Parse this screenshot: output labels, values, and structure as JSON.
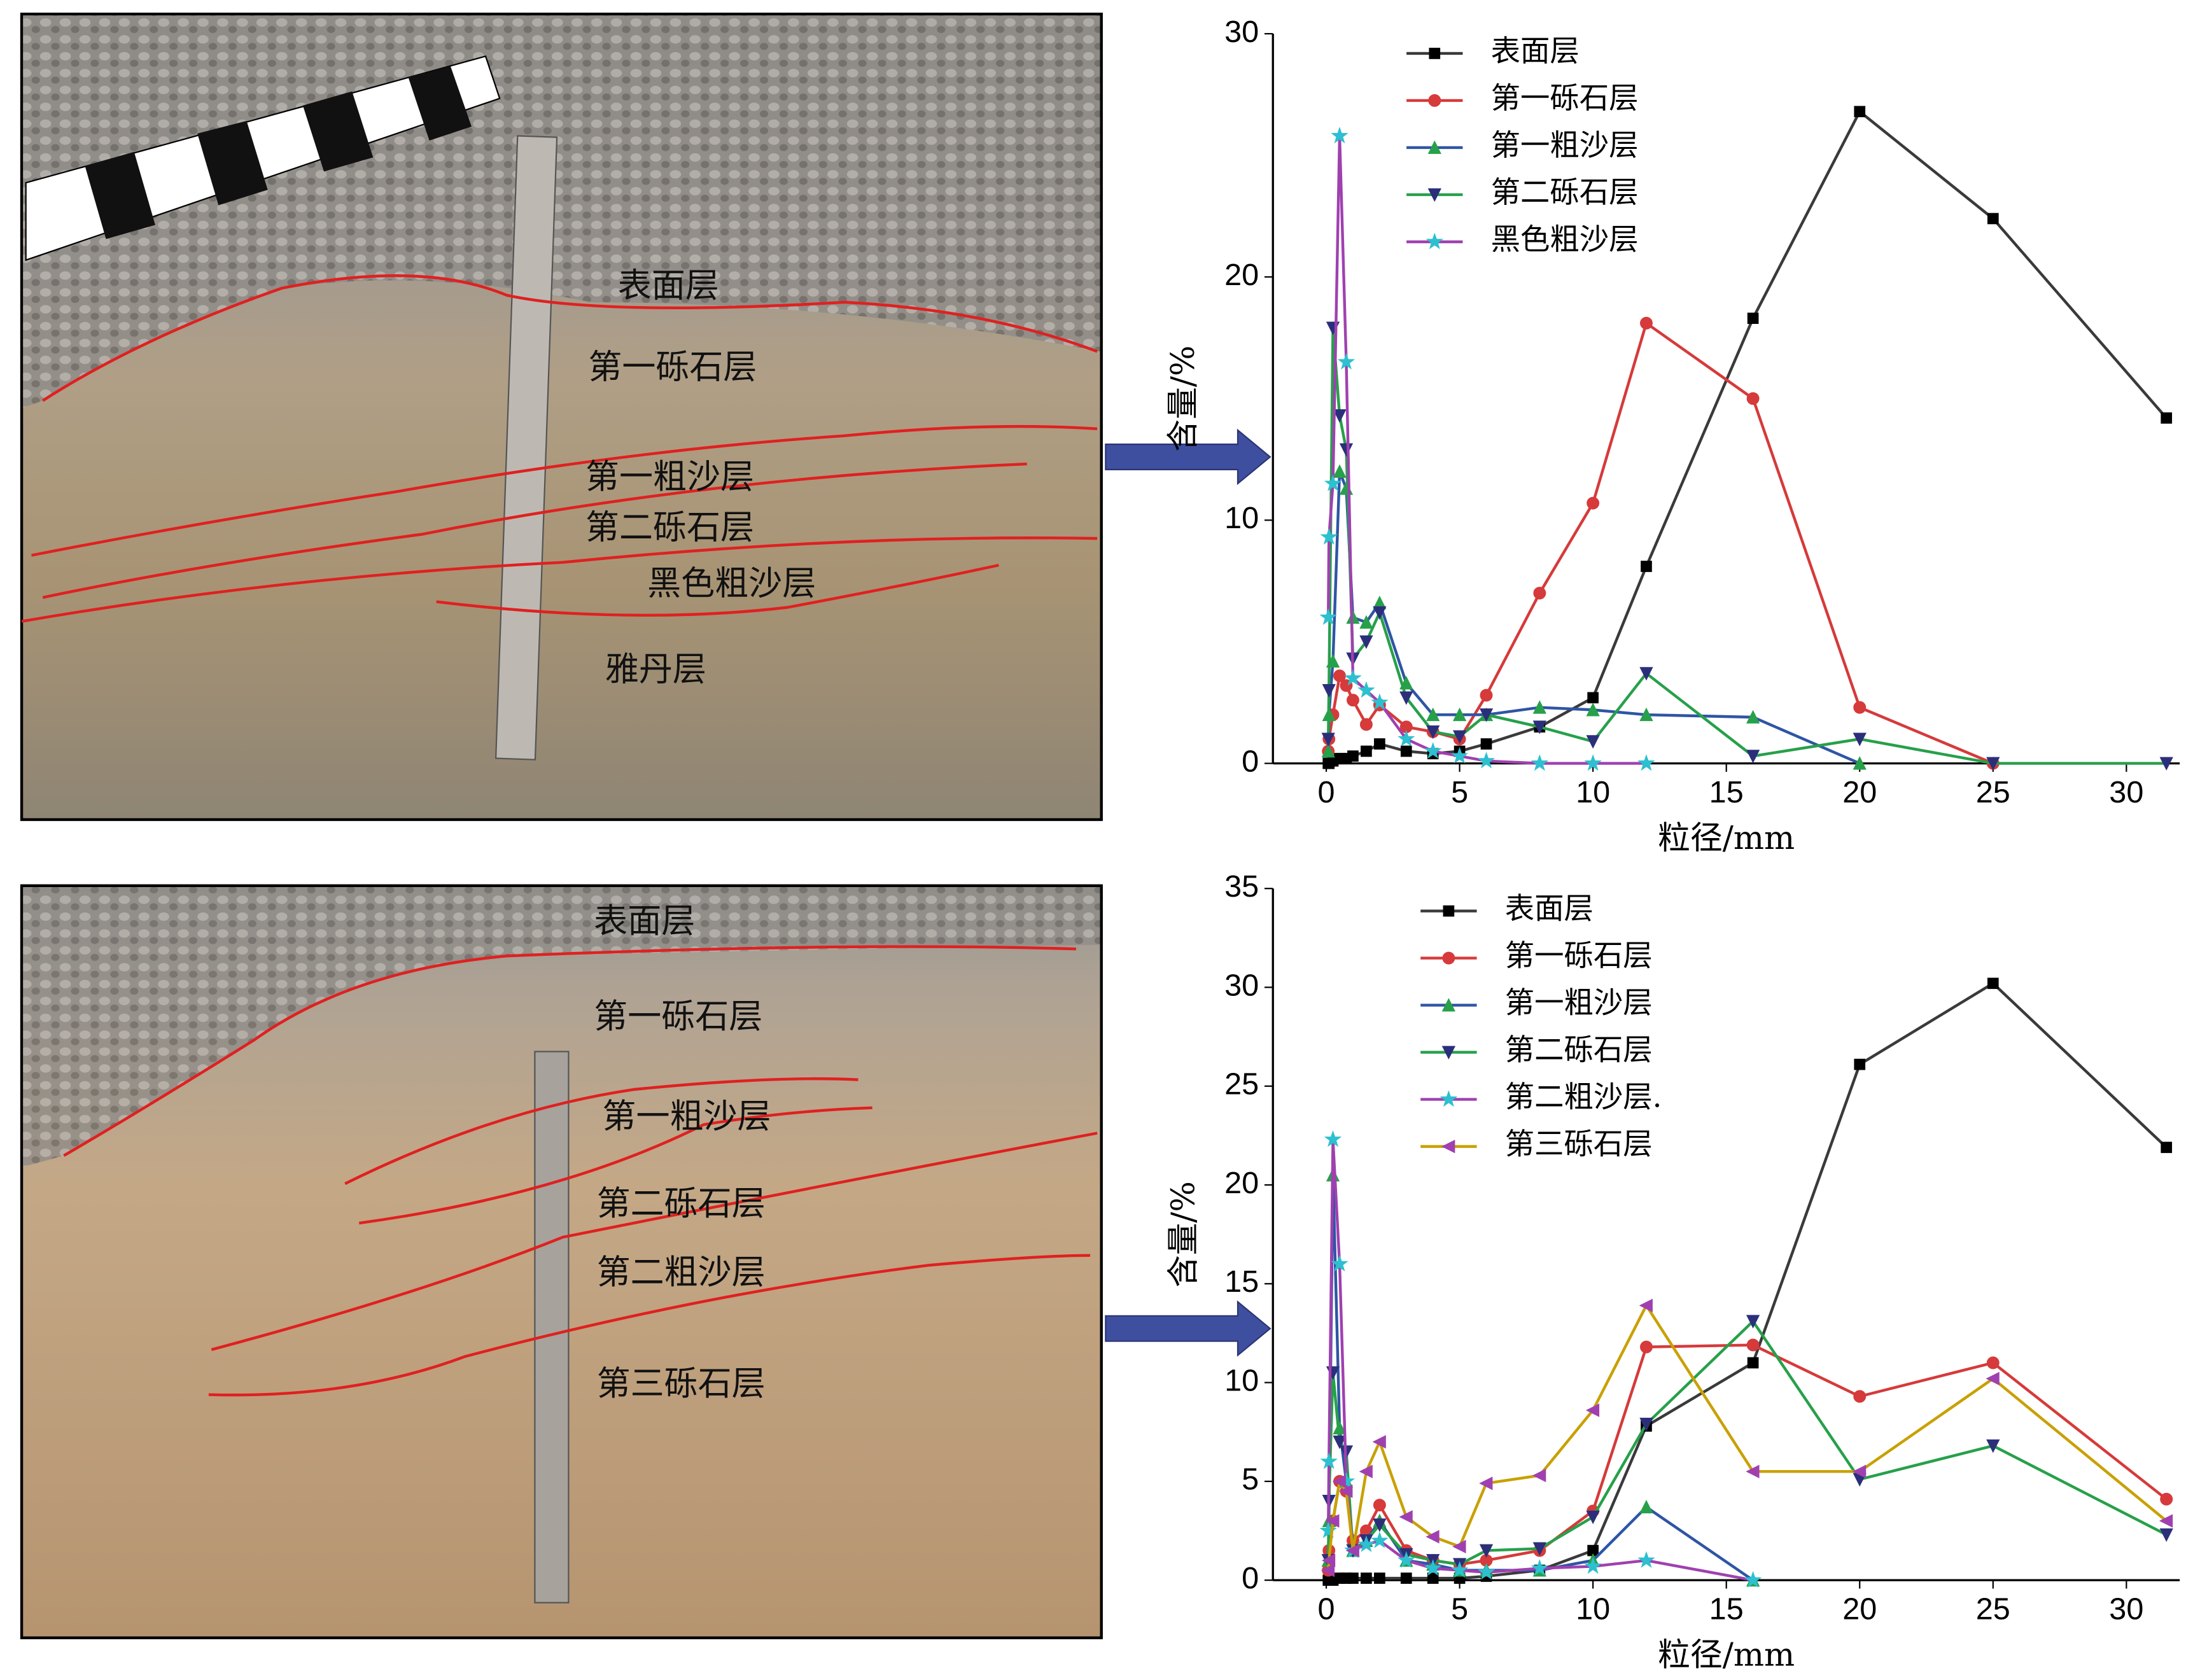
{
  "photos": [
    {
      "labels": [
        "表面层",
        "第一砾石层",
        "第一粗沙层",
        "第二砾石层",
        "黑色粗沙层",
        "雅丹层"
      ]
    },
    {
      "labels": [
        "表面层",
        "第一砾石层",
        "第一粗沙层",
        "第二砾石层",
        "第二粗沙层",
        "第三砾石层"
      ]
    }
  ],
  "chart_data": [
    {
      "type": "line",
      "x_label": "粒径/mm",
      "y_label": "含量/%",
      "x": [
        0.075,
        0.1,
        0.25,
        0.5,
        0.75,
        1,
        1.5,
        2,
        3,
        4,
        5,
        6,
        8,
        10,
        12,
        16,
        20,
        25,
        31.5
      ],
      "xlim": [
        -2,
        32
      ],
      "xticks": [
        0,
        5,
        10,
        15,
        20,
        25,
        30
      ],
      "ylim": [
        0,
        30
      ],
      "yticks": [
        0,
        10,
        20,
        30
      ],
      "grid": false,
      "legend": "top",
      "series": [
        {
          "name": "表面层",
          "color": "#3a3a3a",
          "marker": "square",
          "marker_color": "#000000",
          "values": [
            0,
            0,
            0.1,
            0.2,
            0.2,
            0.3,
            0.5,
            0.8,
            0.5,
            0.4,
            0.5,
            0.8,
            1.5,
            2.7,
            8.1,
            18.3,
            26.8,
            22.4,
            14.2
          ]
        },
        {
          "name": "第一砾石层",
          "color": "#d63a3a",
          "marker": "circle",
          "marker_color": "#d63a3a",
          "values": [
            0.5,
            1.0,
            2.0,
            3.6,
            3.2,
            2.6,
            1.6,
            2.4,
            1.5,
            1.3,
            1.0,
            2.8,
            7.0,
            10.7,
            18.1,
            15.0,
            2.3,
            0,
            null
          ]
        },
        {
          "name": "第一粗沙层",
          "color": "#2e55a5",
          "marker": "up",
          "marker_color": "#27a04a",
          "values": [
            0.5,
            2.0,
            4.2,
            12.0,
            11.3,
            6.0,
            5.8,
            6.6,
            3.3,
            2.0,
            2.0,
            2.0,
            2.3,
            2.2,
            2.0,
            1.9,
            0,
            null,
            null
          ]
        },
        {
          "name": "第二砾石层",
          "color": "#27a04a",
          "marker": "down",
          "marker_color": "#2b2f7a",
          "values": [
            1,
            3,
            17.9,
            14.3,
            12.9,
            4.3,
            5.0,
            6.2,
            2.7,
            1.3,
            1.1,
            2.0,
            1.5,
            0.9,
            3.7,
            0.3,
            1.0,
            0,
            0
          ]
        },
        {
          "name": "黑色粗沙层",
          "color": "#a040b0",
          "marker": "star",
          "marker_color": "#2cc0d0",
          "values": [
            6.0,
            9.3,
            11.5,
            25.8,
            16.5,
            3.5,
            3.0,
            2.5,
            1.0,
            0.5,
            0.3,
            0.1,
            0,
            0,
            0,
            null,
            null,
            null,
            null
          ]
        }
      ]
    },
    {
      "type": "line",
      "x_label": "粒径/mm",
      "y_label": "含量/%",
      "x": [
        0.075,
        0.1,
        0.25,
        0.5,
        0.75,
        1,
        1.5,
        2,
        3,
        4,
        5,
        6,
        8,
        10,
        12,
        16,
        20,
        25,
        31.5
      ],
      "xlim": [
        -2,
        32
      ],
      "xticks": [
        0,
        5,
        10,
        15,
        20,
        25,
        30
      ],
      "ylim": [
        0,
        35
      ],
      "yticks": [
        0,
        5,
        10,
        15,
        20,
        25,
        30,
        35
      ],
      "grid": false,
      "legend": "top",
      "series": [
        {
          "name": "表面层",
          "color": "#3a3a3a",
          "marker": "square",
          "marker_color": "#000000",
          "values": [
            0,
            0,
            0,
            0.1,
            0.1,
            0.1,
            0.1,
            0.1,
            0.1,
            0.1,
            0.1,
            0.2,
            0.5,
            1.5,
            7.8,
            11.0,
            26.1,
            30.2,
            21.9
          ]
        },
        {
          "name": "第一砾石层",
          "color": "#d63a3a",
          "marker": "circle",
          "marker_color": "#d63a3a",
          "values": [
            0.5,
            1.5,
            3.0,
            5.0,
            4.5,
            2.0,
            2.5,
            3.8,
            1.5,
            1.0,
            0.8,
            1.0,
            1.5,
            3.5,
            11.8,
            11.9,
            9.3,
            11.0,
            4.1
          ]
        },
        {
          "name": "第一粗沙层",
          "color": "#2e55a5",
          "marker": "up",
          "marker_color": "#27a04a",
          "values": [
            1,
            3,
            20.5,
            7.7,
            5.0,
            1.5,
            2.0,
            3.0,
            1.0,
            0.8,
            0.5,
            0.5,
            0.5,
            1.0,
            3.7,
            0,
            null,
            null,
            null
          ]
        },
        {
          "name": "第二砾石层",
          "color": "#27a04a",
          "marker": "down",
          "marker_color": "#2b2f7a",
          "values": [
            1,
            4,
            10.5,
            7.0,
            6.5,
            1.5,
            2.0,
            2.8,
            1.3,
            1.0,
            0.8,
            1.5,
            1.6,
            3.2,
            7.9,
            13.1,
            5.1,
            6.8,
            2.3
          ]
        },
        {
          "name": "第二粗沙层.",
          "color": "#a040b0",
          "marker": "star",
          "marker_color": "#2cc0d0",
          "values": [
            2.5,
            6,
            22.3,
            16.0,
            5.0,
            1.5,
            1.8,
            2.0,
            1.0,
            0.6,
            0.5,
            0.4,
            0.6,
            0.7,
            1.0,
            0,
            null,
            null,
            null
          ]
        },
        {
          "name": "第三砾石层",
          "color": "#c9a000",
          "marker": "left",
          "marker_color": "#a040b0",
          "values": [
            0.5,
            1,
            3,
            5.0,
            4.5,
            1.5,
            5.5,
            7.0,
            3.2,
            2.2,
            1.7,
            4.9,
            5.3,
            8.6,
            13.9,
            5.5,
            5.5,
            10.2,
            3.0
          ]
        }
      ]
    }
  ]
}
